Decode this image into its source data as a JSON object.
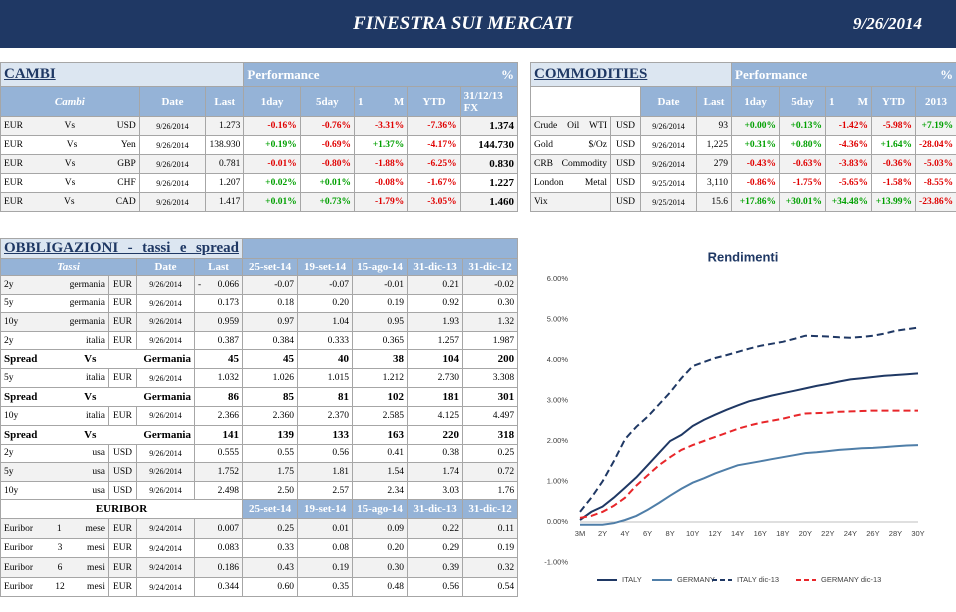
{
  "header": {
    "title": "FINESTRA SUI MERCATI",
    "date": "9/26/2014"
  },
  "cambi": {
    "title": "CAMBI",
    "performance": "Performance %",
    "columns": [
      "Cambi",
      "Date",
      "Last",
      "1day",
      "5day",
      "1 M",
      "YTD",
      "31/12/13 FX"
    ],
    "rows": [
      [
        "EUR Vs USD",
        "9/26/2014",
        "1.273",
        "-0.16%",
        "-0.76%",
        "-3.31%",
        "-7.36%",
        "1.374"
      ],
      [
        "EUR Vs Yen",
        "9/26/2014",
        "138.930",
        "+0.19%",
        "-0.69%",
        "+1.37%",
        "-4.17%",
        "144.730"
      ],
      [
        "EUR Vs GBP",
        "9/26/2014",
        "0.781",
        "-0.01%",
        "-0.80%",
        "-1.88%",
        "-6.25%",
        "0.830"
      ],
      [
        "EUR Vs CHF",
        "9/26/2014",
        "1.207",
        "+0.02%",
        "+0.01%",
        "-0.08%",
        "-1.67%",
        "1.227"
      ],
      [
        "EUR Vs CAD",
        "9/26/2014",
        "1.417",
        "+0.01%",
        "+0.73%",
        "-1.79%",
        "-3.05%",
        "1.460"
      ]
    ]
  },
  "commodities": {
    "title": "COMMODITIES",
    "performance": "Performance %",
    "columns": [
      "Date",
      "Last",
      "1day",
      "5day",
      "1 M",
      "YTD",
      "2013"
    ],
    "rows": [
      [
        "Crude Oil WTI",
        "USD",
        "9/26/2014",
        "93",
        "+0.00%",
        "+0.13%",
        "-1.42%",
        "-5.98%",
        "+7.19%"
      ],
      [
        "Gold $/Oz",
        "USD",
        "9/26/2014",
        "1,225",
        "+0.31%",
        "+0.80%",
        "-4.36%",
        "+1.64%",
        "-28.04%"
      ],
      [
        "CRB Commodity",
        "USD",
        "9/26/2014",
        "279",
        "-0.43%",
        "-0.63%",
        "-3.83%",
        "-0.36%",
        "-5.03%"
      ],
      [
        "London Metal",
        "USD",
        "9/25/2014",
        "3,110",
        "-0.86%",
        "-1.75%",
        "-5.65%",
        "-1.58%",
        "-8.55%"
      ],
      [
        "Vix",
        "USD",
        "9/25/2014",
        "15.6",
        "+17.86%",
        "+30.01%",
        "+34.48%",
        "+13.99%",
        "-23.86%"
      ]
    ]
  },
  "obbligazioni": {
    "title": "OBBLIGAZIONI - tassi e spread",
    "columns": [
      "Tassi",
      "Date",
      "Last",
      "25-set-14",
      "19-set-14",
      "15-ago-14",
      "31-dic-13",
      "31-dic-12"
    ],
    "rows": [
      [
        "2y germania",
        "EUR",
        "9/26/2014",
        "- 0.066",
        "-0.07",
        "-0.07",
        "-0.01",
        "0.21",
        "-0.02"
      ],
      [
        "5y germania",
        "EUR",
        "9/26/2014",
        "0.173",
        "0.18",
        "0.20",
        "0.19",
        "0.92",
        "0.30"
      ],
      [
        "10y germania",
        "EUR",
        "9/26/2014",
        "0.959",
        "0.97",
        "1.04",
        "0.95",
        "1.93",
        "1.32"
      ],
      [
        "2y italia",
        "EUR",
        "9/26/2014",
        "0.387",
        "0.384",
        "0.333",
        "0.365",
        "1.257",
        "1.987"
      ],
      {
        "label": "Spread Vs Germania",
        "values": [
          "45",
          "45",
          "40",
          "38",
          "104",
          "200"
        ]
      },
      [
        "5y italia",
        "EUR",
        "9/26/2014",
        "1.032",
        "1.026",
        "1.015",
        "1.212",
        "2.730",
        "3.308"
      ],
      {
        "label": "Spread Vs Germania",
        "values": [
          "86",
          "85",
          "81",
          "102",
          "181",
          "301"
        ]
      },
      [
        "10y italia",
        "EUR",
        "9/26/2014",
        "2.366",
        "2.360",
        "2.370",
        "2.585",
        "4.125",
        "4.497"
      ],
      {
        "label": "Spread Vs Germania",
        "values": [
          "141",
          "139",
          "133",
          "163",
          "220",
          "318"
        ]
      },
      [
        "2y usa",
        "USD",
        "9/26/2014",
        "0.555",
        "0.55",
        "0.56",
        "0.41",
        "0.38",
        "0.25"
      ],
      [
        "5y usa",
        "USD",
        "9/26/2014",
        "1.752",
        "1.75",
        "1.81",
        "1.54",
        "1.74",
        "0.72"
      ],
      [
        "10y usa",
        "USD",
        "9/26/2014",
        "2.498",
        "2.50",
        "2.57",
        "2.34",
        "3.03",
        "1.76"
      ]
    ]
  },
  "euribor": {
    "title": "EURIBOR",
    "columns": [
      "25-set-14",
      "19-set-14",
      "15-ago-14",
      "31-dic-13",
      "31-dic-12"
    ],
    "rows": [
      [
        "Euribor 1 mese",
        "EUR",
        "9/24/2014",
        "0.007",
        "0.25",
        "0.01",
        "0.09",
        "0.22",
        "0.11"
      ],
      [
        "Euribor 3 mesi",
        "EUR",
        "9/24/2014",
        "0.083",
        "0.33",
        "0.08",
        "0.20",
        "0.29",
        "0.19"
      ],
      [
        "Euribor 6 mesi",
        "EUR",
        "9/24/2014",
        "0.186",
        "0.43",
        "0.19",
        "0.30",
        "0.39",
        "0.32"
      ],
      [
        "Euribor 12 mesi",
        "EUR",
        "9/24/2014",
        "0.344",
        "0.60",
        "0.35",
        "0.48",
        "0.56",
        "0.54"
      ]
    ]
  },
  "chart_data": {
    "type": "line",
    "title": "Rendimenti",
    "categories": [
      "3M",
      null,
      "2Y",
      null,
      "4Y",
      null,
      "6Y",
      null,
      "8Y",
      null,
      "10Y",
      null,
      "12Y",
      null,
      "14Y",
      null,
      "16Y",
      null,
      "18Y",
      null,
      "20Y",
      null,
      "22Y",
      null,
      "24Y",
      null,
      "26Y",
      null,
      "28Y",
      null,
      "30Y"
    ],
    "ylim": [
      -1,
      6
    ],
    "yticks": [
      {
        "value": -1,
        "label": "-1.00%"
      },
      {
        "value": 0,
        "label": "0.00%"
      },
      {
        "value": 1,
        "label": "1.00%"
      },
      {
        "value": 2,
        "label": "2.00%"
      },
      {
        "value": 3,
        "label": "3.00%"
      },
      {
        "value": 4,
        "label": "4.00%"
      },
      {
        "value": 5,
        "label": "5.00%"
      },
      {
        "value": 6,
        "label": "6.00%"
      }
    ],
    "legend": "bottom",
    "series": [
      {
        "name": "ITALY",
        "color": "#1f3864",
        "dashed": false,
        "values": [
          0.05,
          0.25,
          0.38,
          0.6,
          0.85,
          1.1,
          1.4,
          1.7,
          2.0,
          2.15,
          2.37,
          2.52,
          2.65,
          2.77,
          2.88,
          2.98,
          3.05,
          3.12,
          3.18,
          3.24,
          3.3,
          3.36,
          3.41,
          3.47,
          3.52,
          3.55,
          3.58,
          3.61,
          3.63,
          3.65,
          3.67
        ]
      },
      {
        "name": "GERMANY",
        "color": "#4f7ea8",
        "dashed": false,
        "values": [
          -0.07,
          -0.07,
          -0.07,
          -0.03,
          0.05,
          0.15,
          0.3,
          0.47,
          0.65,
          0.82,
          0.97,
          1.08,
          1.2,
          1.3,
          1.4,
          1.45,
          1.5,
          1.55,
          1.6,
          1.65,
          1.7,
          1.72,
          1.75,
          1.78,
          1.8,
          1.82,
          1.83,
          1.85,
          1.87,
          1.89,
          1.9
        ]
      },
      {
        "name": "ITALY dic-13",
        "color": "#1f3864",
        "dashed": true,
        "values": [
          0.25,
          0.6,
          1.0,
          1.5,
          2.05,
          2.35,
          2.6,
          2.9,
          3.2,
          3.55,
          3.85,
          3.95,
          4.05,
          4.12,
          4.2,
          4.28,
          4.35,
          4.4,
          4.45,
          4.52,
          4.6,
          4.59,
          4.58,
          4.56,
          4.55,
          4.57,
          4.6,
          4.65,
          4.72,
          4.76,
          4.8
        ]
      },
      {
        "name": "GERMANY dic-13",
        "color": "#e8262a",
        "dashed": true,
        "values": [
          0.1,
          0.15,
          0.25,
          0.4,
          0.6,
          0.9,
          1.15,
          1.4,
          1.6,
          1.78,
          1.9,
          2.0,
          2.1,
          2.2,
          2.3,
          2.38,
          2.45,
          2.5,
          2.55,
          2.62,
          2.68,
          2.69,
          2.7,
          2.72,
          2.73,
          2.74,
          2.75,
          2.75,
          2.75,
          2.75,
          2.75
        ]
      }
    ]
  }
}
